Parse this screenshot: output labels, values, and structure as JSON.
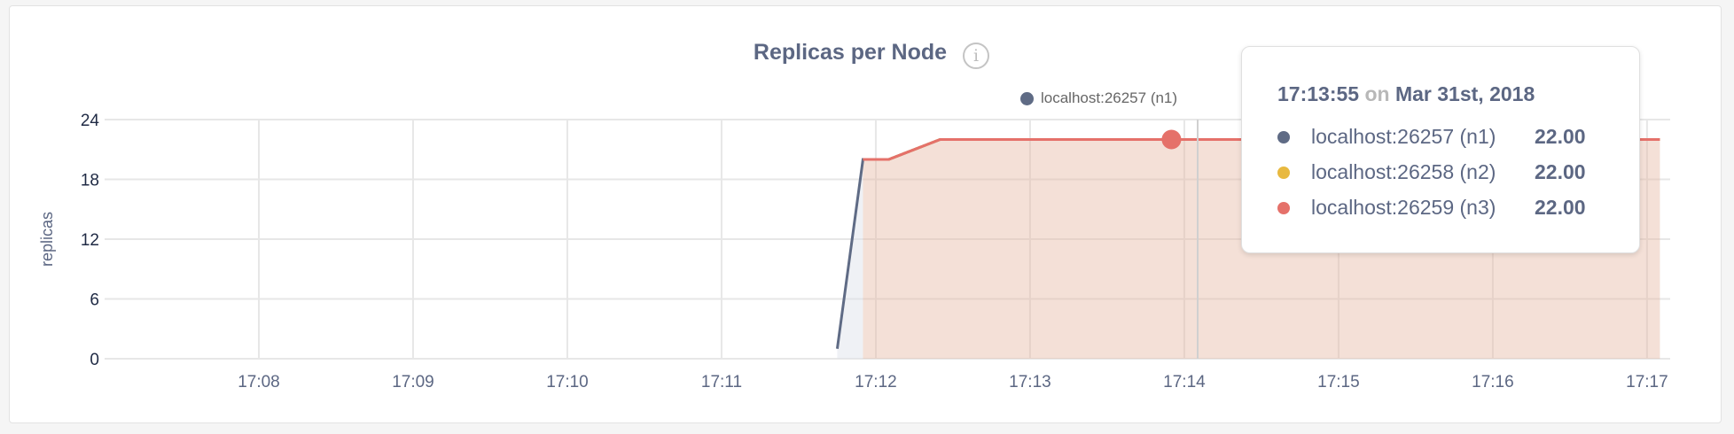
{
  "chart_data": {
    "type": "line",
    "title": "Replicas per Node",
    "ylabel": "replicas",
    "xlabel": "",
    "ylim": [
      0,
      24
    ],
    "yticks": [
      "0",
      "6",
      "12",
      "18",
      "24"
    ],
    "xlim": [
      "17:07:00",
      "17:17:09"
    ],
    "xticks": [
      "17:08",
      "17:09",
      "17:10",
      "17:11",
      "17:12",
      "17:13",
      "17:14",
      "17:15",
      "17:16",
      "17:17"
    ],
    "grid": true,
    "legend_placement": "top-right",
    "series": [
      {
        "name": "localhost:26257 (n1)",
        "color": "#5f6b85",
        "points": [
          [
            "17:11:45",
            1
          ],
          [
            "17:11:55",
            20
          ],
          [
            "17:12:05",
            20
          ],
          [
            "17:12:25",
            22
          ],
          [
            "17:17:05",
            22
          ]
        ]
      },
      {
        "name": "localhost:26258 (n2)",
        "color": "#e8b940",
        "points": [
          [
            "17:11:55",
            20
          ],
          [
            "17:12:05",
            20
          ],
          [
            "17:12:25",
            22
          ],
          [
            "17:17:05",
            22
          ]
        ]
      },
      {
        "name": "localhost:26259 (n3)",
        "color": "#e5716a",
        "points": [
          [
            "17:11:55",
            20
          ],
          [
            "17:12:05",
            20
          ],
          [
            "17:12:25",
            22
          ],
          [
            "17:17:05",
            22
          ]
        ]
      }
    ],
    "hover": {
      "time": "17:13:55",
      "value": 22
    }
  },
  "info_icon": "info-icon",
  "legend": [
    {
      "label": "localhost:26257 (n1)",
      "color": "#5f6b85"
    }
  ],
  "tooltip": {
    "time": "17:13:55",
    "on": "on",
    "date": "Mar 31st, 2018",
    "rows": [
      {
        "name": "localhost:26257 (n1)",
        "value": "22.00",
        "color": "#5f6b85"
      },
      {
        "name": "localhost:26258 (n2)",
        "value": "22.00",
        "color": "#e8b940"
      },
      {
        "name": "localhost:26259 (n3)",
        "value": "22.00",
        "color": "#e5716a"
      }
    ]
  }
}
